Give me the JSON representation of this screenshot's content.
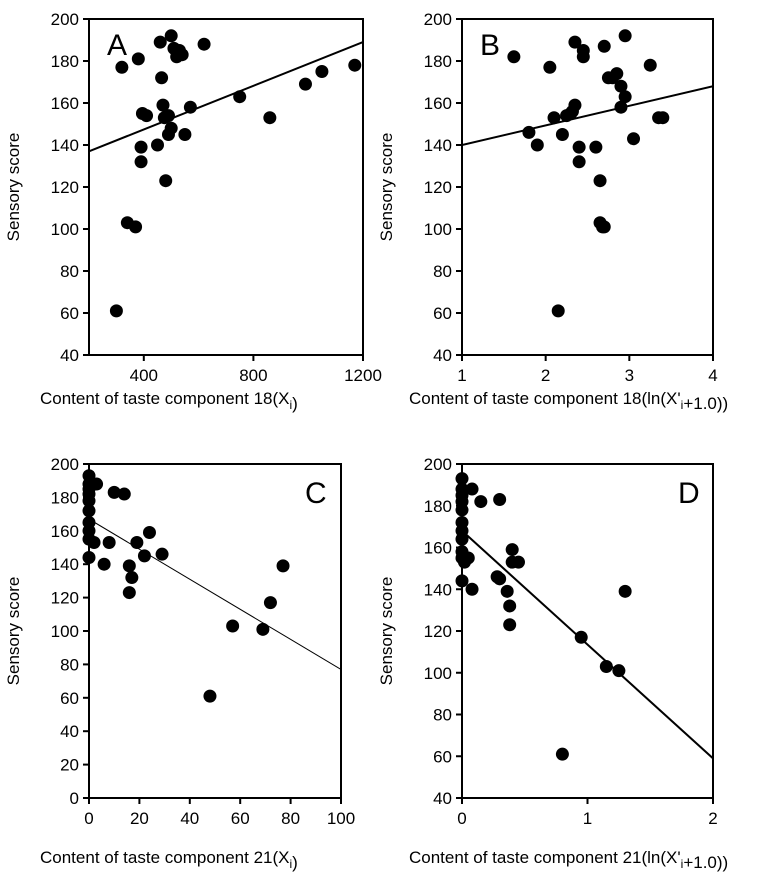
{
  "chart_data": [
    {
      "panel": "A",
      "type": "scatter",
      "ylabel": "Sensory score",
      "xlabel_parts": [
        {
          "t": "Content of taste component 18(X",
          "s": "normal"
        },
        {
          "t": "i",
          "s": "sub"
        },
        {
          "t": ")",
          "s": "normal"
        }
      ],
      "xlim": [
        200,
        1200
      ],
      "ylim": [
        40,
        200
      ],
      "xticks": [
        400,
        800,
        1200
      ],
      "yticks": [
        40,
        60,
        80,
        100,
        120,
        140,
        160,
        180,
        200
      ],
      "points": [
        [
          300,
          61
        ],
        [
          320,
          177
        ],
        [
          340,
          103
        ],
        [
          370,
          101
        ],
        [
          380,
          181
        ],
        [
          390,
          139
        ],
        [
          390,
          132
        ],
        [
          395,
          155
        ],
        [
          410,
          154
        ],
        [
          450,
          140
        ],
        [
          460,
          189
        ],
        [
          465,
          172
        ],
        [
          470,
          159
        ],
        [
          475,
          153
        ],
        [
          480,
          123
        ],
        [
          490,
          145
        ],
        [
          490,
          154
        ],
        [
          500,
          192
        ],
        [
          500,
          148
        ],
        [
          510,
          186
        ],
        [
          520,
          182
        ],
        [
          530,
          185
        ],
        [
          540,
          183
        ],
        [
          550,
          145
        ],
        [
          570,
          158
        ],
        [
          620,
          188
        ],
        [
          750,
          163
        ],
        [
          860,
          153
        ],
        [
          990,
          169
        ],
        [
          1050,
          175
        ],
        [
          1170,
          178
        ]
      ],
      "fit": {
        "x": [
          200,
          1200
        ],
        "y": [
          137,
          189
        ],
        "style": "solid"
      }
    },
    {
      "panel": "B",
      "type": "scatter",
      "ylabel": "Sensory score",
      "xlabel_parts": [
        {
          "t": "Content of taste component 18(ln(X'",
          "s": "normal"
        },
        {
          "t": "i",
          "s": "sub"
        },
        {
          "t": "+1.0))",
          "s": "normal"
        }
      ],
      "xlim": [
        1,
        4
      ],
      "ylim": [
        40,
        200
      ],
      "xticks": [
        1,
        2,
        3,
        4
      ],
      "yticks": [
        40,
        60,
        80,
        100,
        120,
        140,
        160,
        180,
        200
      ],
      "points": [
        [
          1.62,
          182
        ],
        [
          1.8,
          146
        ],
        [
          1.9,
          140
        ],
        [
          2.05,
          177
        ],
        [
          2.1,
          153
        ],
        [
          2.15,
          61
        ],
        [
          2.2,
          145
        ],
        [
          2.25,
          154
        ],
        [
          2.3,
          155
        ],
        [
          2.32,
          156
        ],
        [
          2.35,
          159
        ],
        [
          2.35,
          189
        ],
        [
          2.4,
          139
        ],
        [
          2.4,
          132
        ],
        [
          2.45,
          182
        ],
        [
          2.45,
          185
        ],
        [
          2.6,
          139
        ],
        [
          2.65,
          123
        ],
        [
          2.65,
          103
        ],
        [
          2.68,
          101
        ],
        [
          2.7,
          101
        ],
        [
          2.7,
          187
        ],
        [
          2.75,
          172
        ],
        [
          2.8,
          172
        ],
        [
          2.85,
          174
        ],
        [
          2.9,
          168
        ],
        [
          2.9,
          158
        ],
        [
          2.95,
          163
        ],
        [
          2.95,
          192
        ],
        [
          3.05,
          143
        ],
        [
          3.25,
          178
        ],
        [
          3.35,
          153
        ],
        [
          3.4,
          153
        ]
      ],
      "fit": {
        "x": [
          1,
          4
        ],
        "y": [
          140,
          168
        ],
        "style": "solid"
      }
    },
    {
      "panel": "C",
      "type": "scatter",
      "ylabel": "Sensory score",
      "xlabel_parts": [
        {
          "t": "Content of taste component 21(X",
          "s": "normal"
        },
        {
          "t": "i",
          "s": "sub"
        },
        {
          "t": ")",
          "s": "normal"
        }
      ],
      "xlim": [
        0,
        100
      ],
      "ylim": [
        0,
        200
      ],
      "xticks": [
        0,
        20,
        40,
        60,
        80,
        100
      ],
      "yticks": [
        0,
        20,
        40,
        60,
        80,
        100,
        120,
        140,
        160,
        180,
        200
      ],
      "points": [
        [
          0,
          193
        ],
        [
          0,
          188
        ],
        [
          0,
          185
        ],
        [
          0,
          182
        ],
        [
          0,
          178
        ],
        [
          0,
          172
        ],
        [
          0,
          165
        ],
        [
          0,
          160
        ],
        [
          0,
          155
        ],
        [
          0,
          144
        ],
        [
          2,
          153
        ],
        [
          3,
          188
        ],
        [
          6,
          140
        ],
        [
          8,
          153
        ],
        [
          10,
          183
        ],
        [
          14,
          182
        ],
        [
          16,
          139
        ],
        [
          16,
          123
        ],
        [
          17,
          132
        ],
        [
          19,
          153
        ],
        [
          22,
          145
        ],
        [
          24,
          159
        ],
        [
          29,
          146
        ],
        [
          48,
          61
        ],
        [
          57,
          103
        ],
        [
          69,
          101
        ],
        [
          72,
          117
        ],
        [
          77,
          139
        ]
      ],
      "fit": {
        "x": [
          0,
          100
        ],
        "y": [
          167,
          77
        ],
        "style": "thin"
      }
    },
    {
      "panel": "D",
      "type": "scatter",
      "ylabel": "Sensory score",
      "xlabel_parts": [
        {
          "t": "Content of taste component 21(ln(X'",
          "s": "normal"
        },
        {
          "t": "i",
          "s": "sub"
        },
        {
          "t": "+1.0))",
          "s": "normal"
        }
      ],
      "xlim": [
        0,
        2
      ],
      "ylim": [
        40,
        200
      ],
      "xticks": [
        0,
        1,
        2
      ],
      "yticks": [
        40,
        60,
        80,
        100,
        120,
        140,
        160,
        180,
        200
      ],
      "points": [
        [
          0,
          193
        ],
        [
          0,
          188
        ],
        [
          0,
          185
        ],
        [
          0,
          182
        ],
        [
          0,
          178
        ],
        [
          0,
          172
        ],
        [
          0,
          168
        ],
        [
          0,
          164
        ],
        [
          0,
          158
        ],
        [
          0,
          155
        ],
        [
          0,
          144
        ],
        [
          0.02,
          153
        ],
        [
          0.05,
          155
        ],
        [
          0.08,
          188
        ],
        [
          0.08,
          140
        ],
        [
          0.15,
          182
        ],
        [
          0.28,
          146
        ],
        [
          0.3,
          145
        ],
        [
          0.3,
          183
        ],
        [
          0.36,
          139
        ],
        [
          0.38,
          132
        ],
        [
          0.38,
          123
        ],
        [
          0.4,
          159
        ],
        [
          0.4,
          153
        ],
        [
          0.45,
          153
        ],
        [
          0.8,
          61
        ],
        [
          0.95,
          117
        ],
        [
          1.15,
          103
        ],
        [
          1.25,
          101
        ],
        [
          1.3,
          139
        ]
      ],
      "fit": {
        "x": [
          0,
          2
        ],
        "y": [
          168,
          59
        ],
        "style": "solid"
      }
    }
  ]
}
